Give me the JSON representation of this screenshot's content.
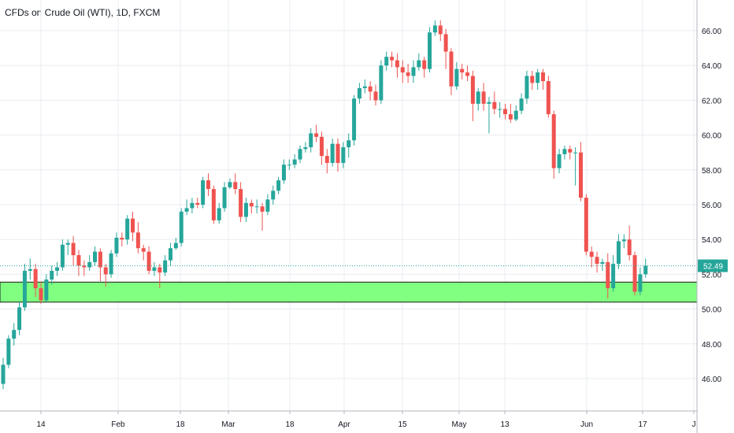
{
  "title": "CFDs on Crude Oil (WTI), 1D, FXCM",
  "chart_data": {
    "type": "candlestick",
    "instrument": "CFDs on Crude Oil (WTI)",
    "interval": "1D",
    "source": "FXCM",
    "y_ticks": [
      "46.00",
      "48.00",
      "50.00",
      "52.00",
      "54.00",
      "56.00",
      "58.00",
      "60.00",
      "62.00",
      "64.00",
      "66.00"
    ],
    "x_ticks": [
      "14",
      "Feb",
      "18",
      "Mar",
      "18",
      "Apr",
      "15",
      "May",
      "13",
      "Jun",
      "17",
      "J"
    ],
    "last_price": 52.49,
    "last_price_label": "52.49",
    "zone": {
      "low": 50.4,
      "high": 51.55
    },
    "colors": {
      "up": "#26a69a",
      "down": "#ef5350",
      "zone": "#80ff80",
      "grid": "#e9ecf1",
      "last": "#26a69a"
    },
    "candles": [
      [
        45.7,
        46.8,
        45.4,
        47.2
      ],
      [
        46.8,
        48.3,
        46.6,
        48.5
      ],
      [
        48.3,
        48.8,
        47.9,
        49.2
      ],
      [
        48.8,
        50.1,
        48.5,
        50.4
      ],
      [
        50.1,
        52.2,
        49.9,
        52.6
      ],
      [
        52.2,
        52.3,
        51.7,
        52.9
      ],
      [
        52.3,
        51.2,
        50.7,
        52.6
      ],
      [
        51.2,
        50.5,
        50.3,
        51.6
      ],
      [
        50.5,
        51.7,
        50.4,
        52.0
      ],
      [
        51.7,
        52.2,
        51.4,
        52.5
      ],
      [
        52.2,
        52.4,
        51.9,
        52.7
      ],
      [
        52.4,
        53.7,
        52.2,
        54.0
      ],
      [
        53.7,
        53.8,
        53.1,
        54.0
      ],
      [
        53.8,
        53.1,
        52.5,
        54.2
      ],
      [
        53.1,
        52.5,
        51.9,
        53.4
      ],
      [
        52.5,
        52.4,
        51.9,
        52.8
      ],
      [
        52.4,
        52.7,
        52.2,
        53.1
      ],
      [
        52.7,
        53.3,
        52.5,
        53.6
      ],
      [
        53.3,
        52.4,
        51.6,
        53.5
      ],
      [
        52.4,
        52.0,
        51.3,
        52.6
      ],
      [
        52.0,
        53.2,
        51.8,
        53.4
      ],
      [
        53.2,
        54.1,
        53.0,
        54.4
      ],
      [
        54.1,
        54.0,
        53.6,
        54.4
      ],
      [
        54.0,
        55.2,
        53.7,
        55.4
      ],
      [
        55.2,
        54.4,
        53.9,
        55.6
      ],
      [
        54.4,
        53.5,
        53.2,
        55.0
      ],
      [
        53.5,
        53.3,
        52.8,
        53.7
      ],
      [
        53.3,
        52.2,
        52.0,
        53.6
      ],
      [
        52.2,
        52.4,
        51.9,
        52.7
      ],
      [
        52.4,
        52.1,
        51.2,
        52.6
      ],
      [
        52.1,
        52.8,
        51.9,
        53.1
      ],
      [
        52.8,
        53.5,
        52.5,
        53.8
      ],
      [
        53.5,
        53.8,
        53.4,
        54.1
      ],
      [
        53.8,
        55.6,
        53.6,
        55.8
      ],
      [
        55.6,
        55.8,
        55.4,
        56.3
      ],
      [
        55.8,
        56.1,
        55.5,
        56.4
      ],
      [
        56.1,
        56.0,
        55.8,
        56.4
      ],
      [
        56.0,
        57.4,
        55.8,
        57.6
      ],
      [
        57.4,
        56.9,
        56.5,
        57.8
      ],
      [
        56.9,
        55.1,
        54.9,
        57.1
      ],
      [
        55.1,
        55.8,
        54.9,
        56.1
      ],
      [
        55.8,
        57.0,
        55.6,
        57.3
      ],
      [
        57.0,
        57.3,
        56.9,
        57.5
      ],
      [
        57.3,
        56.9,
        56.6,
        57.8
      ],
      [
        56.9,
        55.3,
        55.0,
        57.3
      ],
      [
        55.3,
        56.1,
        55.0,
        56.4
      ],
      [
        56.1,
        55.9,
        55.5,
        56.3
      ],
      [
        55.9,
        55.9,
        55.5,
        56.3
      ],
      [
        55.9,
        55.6,
        54.5,
        56.1
      ],
      [
        55.6,
        56.3,
        55.4,
        56.6
      ],
      [
        56.3,
        56.8,
        56.0,
        57.1
      ],
      [
        56.8,
        57.4,
        56.6,
        57.6
      ],
      [
        57.4,
        58.3,
        57.2,
        58.6
      ],
      [
        58.3,
        58.3,
        58.0,
        58.6
      ],
      [
        58.3,
        58.6,
        58.1,
        58.9
      ],
      [
        58.6,
        59.2,
        58.4,
        59.4
      ],
      [
        59.2,
        59.3,
        59.0,
        59.6
      ],
      [
        59.3,
        60.1,
        59.0,
        60.4
      ],
      [
        60.1,
        59.9,
        59.6,
        60.6
      ],
      [
        59.9,
        58.8,
        58.3,
        60.2
      ],
      [
        58.8,
        58.4,
        57.8,
        59.2
      ],
      [
        58.4,
        59.5,
        58.2,
        59.8
      ],
      [
        59.5,
        58.4,
        57.9,
        59.8
      ],
      [
        58.4,
        59.3,
        58.1,
        59.6
      ],
      [
        59.3,
        59.7,
        58.7,
        60.1
      ],
      [
        59.7,
        62.1,
        59.4,
        62.3
      ],
      [
        62.1,
        62.7,
        61.8,
        63.0
      ],
      [
        62.7,
        62.8,
        62.4,
        63.2
      ],
      [
        62.8,
        62.5,
        62.0,
        63.1
      ],
      [
        62.5,
        62.0,
        61.7,
        62.9
      ],
      [
        62.0,
        64.0,
        61.8,
        64.3
      ],
      [
        64.0,
        64.5,
        63.7,
        64.8
      ],
      [
        64.5,
        64.3,
        63.9,
        64.8
      ],
      [
        64.3,
        63.9,
        63.3,
        64.7
      ],
      [
        63.9,
        63.6,
        63.0,
        64.3
      ],
      [
        63.6,
        63.4,
        63.0,
        64.1
      ],
      [
        63.4,
        63.9,
        63.0,
        64.3
      ],
      [
        63.9,
        64.3,
        63.7,
        64.7
      ],
      [
        64.3,
        63.8,
        63.3,
        64.5
      ],
      [
        63.8,
        65.9,
        63.6,
        66.2
      ],
      [
        65.9,
        66.3,
        65.7,
        66.6
      ],
      [
        66.3,
        65.8,
        65.4,
        66.6
      ],
      [
        65.8,
        64.8,
        63.8,
        66.1
      ],
      [
        64.8,
        62.8,
        62.3,
        65.0
      ],
      [
        62.8,
        63.8,
        62.6,
        64.2
      ],
      [
        63.8,
        63.6,
        63.2,
        64.1
      ],
      [
        63.6,
        63.4,
        63.1,
        64.0
      ],
      [
        63.4,
        61.8,
        60.8,
        63.7
      ],
      [
        61.8,
        62.5,
        61.4,
        62.7
      ],
      [
        62.5,
        61.8,
        61.4,
        63.0
      ],
      [
        61.8,
        61.9,
        60.1,
        62.2
      ],
      [
        61.9,
        61.5,
        61.2,
        62.5
      ],
      [
        61.5,
        61.5,
        61.0,
        61.9
      ],
      [
        61.5,
        61.2,
        60.9,
        61.8
      ],
      [
        61.2,
        60.9,
        60.7,
        61.8
      ],
      [
        60.9,
        61.4,
        60.8,
        61.7
      ],
      [
        61.4,
        62.1,
        61.2,
        62.4
      ],
      [
        62.1,
        63.4,
        61.8,
        63.7
      ],
      [
        63.4,
        63.0,
        62.6,
        63.7
      ],
      [
        63.0,
        63.6,
        62.6,
        63.8
      ],
      [
        63.6,
        63.1,
        62.6,
        63.8
      ],
      [
        63.1,
        61.2,
        61.0,
        63.4
      ],
      [
        61.2,
        58.1,
        57.5,
        61.4
      ],
      [
        58.1,
        58.9,
        57.8,
        59.2
      ],
      [
        58.9,
        59.2,
        58.6,
        59.4
      ],
      [
        59.2,
        59.0,
        58.6,
        59.4
      ],
      [
        59.0,
        59.0,
        57.1,
        59.3
      ],
      [
        59.0,
        56.4,
        56.2,
        59.6
      ],
      [
        56.4,
        53.3,
        53.1,
        56.6
      ],
      [
        53.3,
        53.0,
        52.4,
        53.6
      ],
      [
        53.0,
        52.6,
        52.1,
        53.3
      ],
      [
        52.6,
        52.7,
        52.2,
        52.9
      ],
      [
        52.7,
        51.2,
        50.6,
        53.2
      ],
      [
        51.2,
        52.6,
        51.0,
        53.1
      ],
      [
        52.6,
        53.9,
        52.3,
        54.3
      ],
      [
        53.9,
        54.0,
        53.5,
        54.3
      ],
      [
        54.0,
        53.1,
        52.8,
        54.8
      ],
      [
        53.1,
        51.0,
        50.8,
        53.3
      ],
      [
        51.0,
        52.0,
        50.8,
        52.4
      ],
      [
        52.0,
        52.49,
        51.8,
        52.9
      ]
    ]
  }
}
